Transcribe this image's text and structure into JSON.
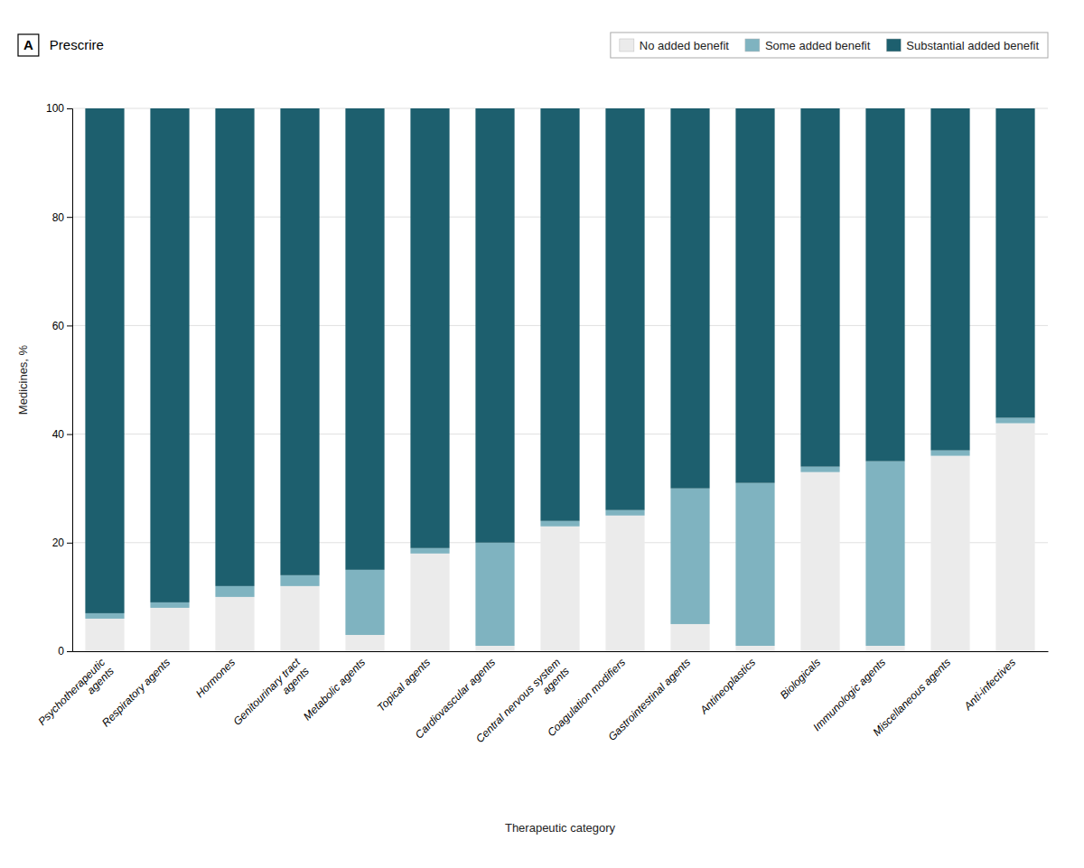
{
  "chart_data": {
    "type": "bar",
    "stacked": true,
    "title": "Prescrire",
    "annotations": [
      "A"
    ],
    "categories": [
      "Psychotherapeutic\nagents",
      "Respiratory agents",
      "Hormones",
      "Genitourinary tract\nagents",
      "Metabolic agents",
      "Topical agents",
      "Cardiovascular agents",
      "Central nervous system\nagents",
      "Coagulation modifiers",
      "Gastrointestinal agents",
      "Antineoplastics",
      "Biologicals",
      "Immunologic agents",
      "Miscellaneous agents",
      "Anti-infectives"
    ],
    "series": [
      {
        "name": "No added benefit",
        "color": "#ebebeb",
        "values": [
          6,
          8,
          10,
          12,
          3,
          18,
          1,
          23,
          25,
          5,
          1,
          33,
          1,
          36,
          42
        ]
      },
      {
        "name": "Some added benefit",
        "color": "#7fb3c0",
        "values": [
          1,
          1,
          2,
          2,
          12,
          1,
          19,
          1,
          1,
          25,
          30,
          1,
          34,
          1,
          1
        ]
      },
      {
        "name": "Substantial added benefit",
        "color": "#1d5f6e",
        "values": [
          93,
          91,
          88,
          86,
          85,
          81,
          80,
          76,
          74,
          70,
          69,
          66,
          65,
          63,
          57
        ]
      }
    ],
    "xlabel": "Therapeutic category",
    "ylabel": "Medicines, %",
    "ylim": [
      0,
      100
    ],
    "yticks": [
      0,
      20,
      40,
      60,
      80,
      100
    ],
    "grid": true,
    "legend": "top-right"
  }
}
